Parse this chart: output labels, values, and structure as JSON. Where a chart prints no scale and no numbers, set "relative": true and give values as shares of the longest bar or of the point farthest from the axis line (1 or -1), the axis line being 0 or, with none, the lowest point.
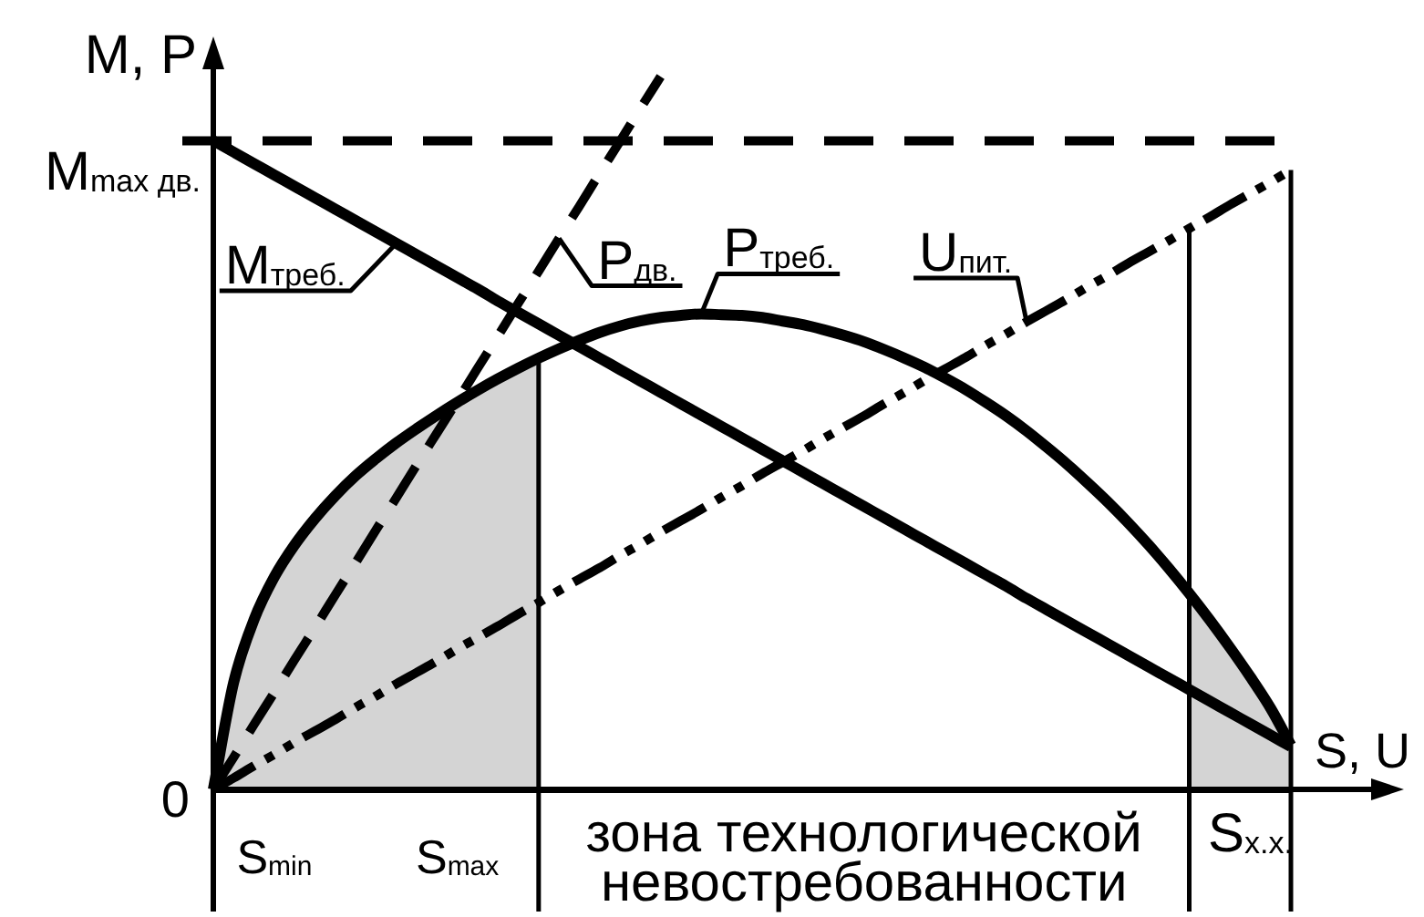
{
  "chart_data": {
    "type": "line",
    "relative": true,
    "xlabel": "S, U",
    "ylabel": "M, P",
    "marker": "none",
    "categories": [
      null,
      null,
      null,
      "S$_{min}$",
      null,
      null,
      null,
      null,
      null,
      null,
      null,
      null,
      "S$_{max}$",
      null,
      null,
      null,
      null,
      null,
      null,
      null,
      null,
      null,
      null,
      null,
      null,
      null,
      null,
      null,
      null,
      null,
      null,
      null,
      "зона технологической невостребованности",
      null,
      null,
      null,
      null,
      null,
      null,
      null,
      null,
      null,
      null,
      null,
      null,
      null,
      null,
      null,
      null,
      null,
      null,
      "S$_{x.x.}$",
      null,
      null
    ],
    "series": [
      {
        "name": "M$_{треб.}$",
        "color": "#000000",
        "values": [
          0.91,
          0.894,
          0.878,
          0.862,
          0.846,
          0.83,
          0.814,
          0.798,
          0.782,
          0.766,
          0.75,
          0.734,
          0.718,
          0.702,
          0.685,
          0.669,
          0.653,
          0.637,
          0.621,
          0.605,
          0.589,
          0.573,
          0.557,
          0.541,
          0.525,
          0.509,
          0.493,
          0.477,
          0.461,
          0.445,
          0.429,
          0.413,
          0.397,
          0.381,
          0.365,
          0.349,
          0.333,
          0.317,
          0.301,
          0.285,
          0.268,
          0.252,
          0.236,
          0.22,
          0.204,
          0.188,
          0.172,
          0.156,
          0.14,
          0.124,
          0.108,
          0.092,
          0.076,
          0.06
        ]
      },
      {
        "name": "P$_{дв.}$",
        "color": "#000000",
        "line_style": "dashed",
        "values": [
          0,
          0.045,
          0.091,
          0.136,
          0.182,
          0.227,
          0.273,
          0.318,
          0.364,
          0.409,
          0.455,
          0.5,
          0.545,
          0.591,
          0.636,
          0.682,
          0.727,
          0.773,
          0.818,
          0.864,
          0.909,
          0.955,
          1,
          null,
          null,
          null,
          null,
          null,
          null,
          null,
          null,
          null,
          null,
          null,
          null,
          null,
          null,
          null,
          null,
          null,
          null,
          null,
          null,
          null,
          null,
          null,
          null,
          null,
          null,
          null,
          null,
          null,
          null,
          null
        ]
      },
      {
        "name": "P$_{треб.}$",
        "color": "#000000",
        "values": [
          0,
          0.15,
          0.238,
          0.298,
          0.343,
          0.38,
          0.412,
          0.44,
          0.464,
          0.486,
          0.506,
          0.525,
          0.543,
          0.56,
          0.576,
          0.591,
          0.605,
          0.618,
          0.63,
          0.641,
          0.65,
          0.657,
          0.662,
          0.665,
          0.667,
          0.666,
          0.665,
          0.662,
          0.657,
          0.652,
          0.645,
          0.637,
          0.628,
          0.617,
          0.605,
          0.592,
          0.577,
          0.561,
          0.543,
          0.524,
          0.503,
          0.48,
          0.456,
          0.43,
          0.403,
          0.374,
          0.343,
          0.31,
          0.275,
          0.238,
          0.199,
          0.158,
          0.114,
          0.062
        ]
      },
      {
        "name": "U$_{пит.}$",
        "color": "#000000",
        "line_style": "dashed",
        "values": [
          0,
          0.016,
          0.033,
          0.049,
          0.066,
          0.082,
          0.098,
          0.115,
          0.131,
          0.148,
          0.164,
          0.18,
          0.197,
          0.213,
          0.229,
          0.246,
          0.262,
          0.279,
          0.295,
          0.311,
          0.328,
          0.344,
          0.361,
          0.377,
          0.393,
          0.41,
          0.426,
          0.443,
          0.459,
          0.475,
          0.492,
          0.508,
          0.524,
          0.541,
          0.557,
          0.574,
          0.59,
          0.606,
          0.623,
          0.639,
          0.656,
          0.672,
          0.688,
          0.705,
          0.721,
          0.738,
          0.754,
          0.77,
          0.787,
          0.803,
          0.82,
          0.836,
          0.852,
          0.869
        ]
      },
      {
        "type": "area",
        "color": "#d4d4d4",
        "values": [
          0,
          0.15,
          0.238,
          0.298,
          0.343,
          0.38,
          0.412,
          0.44,
          0.464,
          0.486,
          0.506,
          0.525,
          0.543,
          0.56,
          0.576,
          0.591,
          0.605,
          null,
          null,
          null,
          null,
          null,
          null,
          null,
          null,
          null,
          null,
          null,
          null,
          null,
          null,
          null,
          null,
          null,
          null,
          null,
          null,
          null,
          null,
          null,
          null,
          null,
          null,
          null,
          null,
          null,
          null,
          null,
          0.275,
          0.238,
          0.199,
          0.158,
          0.114,
          0.062
        ]
      }
    ],
    "ref_lines": [
      {
        "axis": "y",
        "value": 0.91,
        "label": "M$_{max дв.}$",
        "line_style": "dashed"
      }
    ],
    "annotations": [
      "0"
    ]
  }
}
